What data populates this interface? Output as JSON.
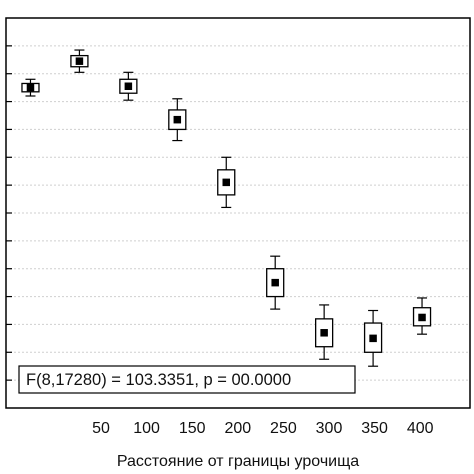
{
  "chart_data": {
    "type": "box",
    "xlabel": "Расстояние от границы урочища",
    "ylabel": "",
    "x_tick_labels": [
      "50",
      "100",
      "150",
      "200",
      "250",
      "300",
      "350",
      "400"
    ],
    "xlim": [
      0,
      474
    ],
    "ylim": [
      0,
      14
    ],
    "grid_y": true,
    "y_gridlines": [
      1,
      2,
      3,
      4,
      5,
      6,
      7,
      8,
      9,
      10,
      11,
      12,
      13
    ],
    "points": [
      {
        "x": 25,
        "mean": 11.5,
        "box_low": 11.35,
        "box_high": 11.65,
        "whisker_low": 11.2,
        "whisker_high": 11.8
      },
      {
        "x": 75,
        "mean": 12.45,
        "box_low": 12.25,
        "box_high": 12.65,
        "whisker_low": 12.05,
        "whisker_high": 12.85
      },
      {
        "x": 125,
        "mean": 11.55,
        "box_low": 11.3,
        "box_high": 11.8,
        "whisker_low": 11.05,
        "whisker_high": 12.05
      },
      {
        "x": 175,
        "mean": 10.35,
        "box_low": 10.0,
        "box_high": 10.7,
        "whisker_low": 9.6,
        "whisker_high": 11.1
      },
      {
        "x": 225,
        "mean": 8.1,
        "box_low": 7.65,
        "box_high": 8.55,
        "whisker_low": 7.2,
        "whisker_high": 9.0
      },
      {
        "x": 275,
        "mean": 4.5,
        "box_low": 4.0,
        "box_high": 5.0,
        "whisker_low": 3.55,
        "whisker_high": 5.45
      },
      {
        "x": 325,
        "mean": 2.7,
        "box_low": 2.2,
        "box_high": 3.2,
        "whisker_low": 1.75,
        "whisker_high": 3.7
      },
      {
        "x": 375,
        "mean": 2.5,
        "box_low": 2.0,
        "box_high": 3.05,
        "whisker_low": 1.5,
        "whisker_high": 3.5
      },
      {
        "x": 425,
        "mean": 3.25,
        "box_low": 2.95,
        "box_high": 3.6,
        "whisker_low": 2.65,
        "whisker_high": 3.95
      }
    ],
    "annotation": "F(8,17280) = 103.3351, p = 00.0000"
  }
}
